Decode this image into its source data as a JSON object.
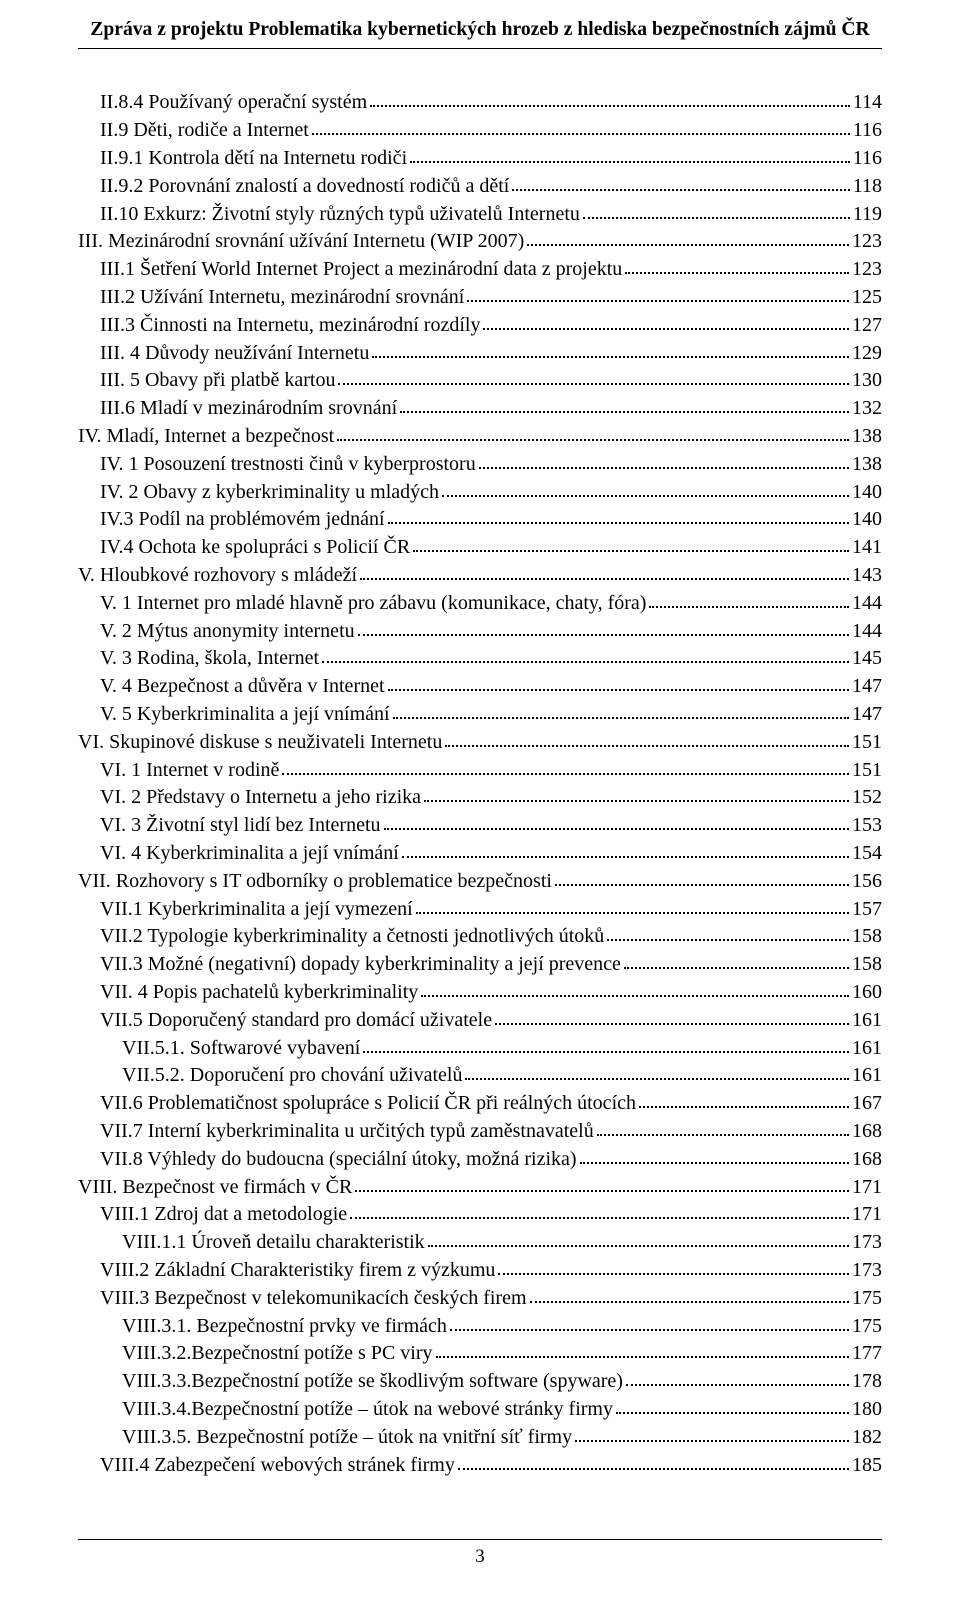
{
  "header": {
    "title": "Zpráva z projektu Problematika kybernetických hrozeb z hlediska bezpečnostních zájmů ČR"
  },
  "footer": {
    "page_number": "3"
  },
  "toc": [
    {
      "indent": 1,
      "label": "II.8.4 Používaný operační systém",
      "page": "114"
    },
    {
      "indent": 1,
      "label": "II.9 Děti, rodiče a Internet",
      "page": "116"
    },
    {
      "indent": 1,
      "label": "II.9.1 Kontrola dětí na Internetu rodiči",
      "page": "116"
    },
    {
      "indent": 1,
      "label": "II.9.2 Porovnání znalostí a dovedností rodičů a dětí",
      "page": "118"
    },
    {
      "indent": 1,
      "label": "II.10 Exkurz: Životní styly různých typů uživatelů Internetu",
      "page": "119"
    },
    {
      "indent": 0,
      "label": "III. Mezinárodní srovnání užívání Internetu (WIP 2007)",
      "page": "123"
    },
    {
      "indent": 1,
      "label": "III.1 Šetření World Internet Project a mezinárodní data z projektu",
      "page": "123"
    },
    {
      "indent": 1,
      "label": "III.2 Užívání Internetu, mezinárodní srovnání",
      "page": "125"
    },
    {
      "indent": 1,
      "label": "III.3 Činnosti na Internetu, mezinárodní rozdíly",
      "page": "127"
    },
    {
      "indent": 1,
      "label": "III. 4 Důvody neužívání Internetu",
      "page": "129"
    },
    {
      "indent": 1,
      "label": "III. 5 Obavy při platbě kartou",
      "page": "130"
    },
    {
      "indent": 1,
      "label": "III.6 Mladí v mezinárodním srovnání",
      "page": "132"
    },
    {
      "indent": 0,
      "label": "IV. Mladí, Internet a  bezpečnost",
      "page": "138"
    },
    {
      "indent": 1,
      "label": "IV. 1 Posouzení trestnosti činů v kyberprostoru",
      "page": "138"
    },
    {
      "indent": 1,
      "label": "IV. 2 Obavy z kyberkriminality u mladých",
      "page": "140"
    },
    {
      "indent": 1,
      "label": "IV.3 Podíl na problémovém jednání",
      "page": "140"
    },
    {
      "indent": 1,
      "label": "IV.4 Ochota ke spolupráci s Policií ČR",
      "page": "141"
    },
    {
      "indent": 0,
      "label": "V. Hloubkové rozhovory s mládeží",
      "page": "143"
    },
    {
      "indent": 1,
      "label": "V. 1 Internet pro mladé hlavně pro zábavu (komunikace, chaty, fóra)",
      "page": "144"
    },
    {
      "indent": 1,
      "label": "V. 2 Mýtus anonymity internetu",
      "page": "144"
    },
    {
      "indent": 1,
      "label": "V. 3 Rodina, škola, Internet",
      "page": "145"
    },
    {
      "indent": 1,
      "label": "V. 4 Bezpečnost a důvěra v Internet",
      "page": "147"
    },
    {
      "indent": 1,
      "label": "V. 5 Kyberkriminalita a její vnímání",
      "page": "147"
    },
    {
      "indent": 0,
      "label": "VI. Skupinové diskuse s neuživateli Internetu",
      "page": "151"
    },
    {
      "indent": 1,
      "label": "VI. 1 Internet v rodině",
      "page": "151"
    },
    {
      "indent": 1,
      "label": "VI. 2 Představy o Internetu a jeho rizika",
      "page": "152"
    },
    {
      "indent": 1,
      "label": "VI. 3 Životní styl lidí bez Internetu",
      "page": "153"
    },
    {
      "indent": 1,
      "label": "VI. 4 Kyberkriminalita a její vnímání",
      "page": "154"
    },
    {
      "indent": 0,
      "label": "VII. Rozhovory s IT odborníky o problematice bezpečnosti",
      "page": "156"
    },
    {
      "indent": 1,
      "label": "VII.1 Kyberkriminalita a její vymezení",
      "page": "157"
    },
    {
      "indent": 1,
      "label": "VII.2 Typologie kyberkriminality a četnosti jednotlivých útoků",
      "page": "158"
    },
    {
      "indent": 1,
      "label": "VII.3 Možné (negativní) dopady kyberkriminality a její prevence",
      "page": "158"
    },
    {
      "indent": 1,
      "label": "VII. 4 Popis pachatelů kyberkriminality",
      "page": "160"
    },
    {
      "indent": 1,
      "label": "VII.5 Doporučený standard pro domácí uživatele",
      "page": "161"
    },
    {
      "indent": 2,
      "label": "VII.5.1. Softwarové vybavení",
      "page": "161"
    },
    {
      "indent": 2,
      "label": "VII.5.2. Doporučení pro chování uživatelů",
      "page": "161"
    },
    {
      "indent": 1,
      "label": "VII.6  Problematičnost spolupráce s Policií ČR při reálných útocích",
      "page": "167"
    },
    {
      "indent": 1,
      "label": "VII.7 Interní kyberkriminalita u určitých typů zaměstnavatelů",
      "page": "168"
    },
    {
      "indent": 1,
      "label": "VII.8 Výhledy do budoucna (speciální útoky, možná rizika)",
      "page": "168"
    },
    {
      "indent": 0,
      "label": "VIII. Bezpečnost ve firmách v ČR",
      "page": "171"
    },
    {
      "indent": 1,
      "label": "VIII.1 Zdroj dat a metodologie",
      "page": "171"
    },
    {
      "indent": 2,
      "label": "VIII.1.1 Úroveň detailu charakteristik",
      "page": "173"
    },
    {
      "indent": 1,
      "label": "VIII.2 Základní Charakteristiky firem z výzkumu",
      "page": "173"
    },
    {
      "indent": 1,
      "label": "VIII.3 Bezpečnost v telekomunikacích českých firem",
      "page": "175"
    },
    {
      "indent": 2,
      "label": "VIII.3.1. Bezpečnostní prvky ve firmách",
      "page": "175"
    },
    {
      "indent": 2,
      "label": "VIII.3.2.Bezpečnostní potíže s PC viry",
      "page": "177"
    },
    {
      "indent": 2,
      "label": "VIII.3.3.Bezpečnostní potíže se škodlivým software (spyware)",
      "page": "178"
    },
    {
      "indent": 2,
      "label": "VIII.3.4.Bezpečnostní potíže – útok na webové stránky firmy",
      "page": "180"
    },
    {
      "indent": 2,
      "label": "VIII.3.5. Bezpečnostní potíže – útok na vnitřní síť firmy",
      "page": "182"
    },
    {
      "indent": 1,
      "label": "VIII.4 Zabezpečení webových stránek firmy",
      "page": "185"
    }
  ]
}
